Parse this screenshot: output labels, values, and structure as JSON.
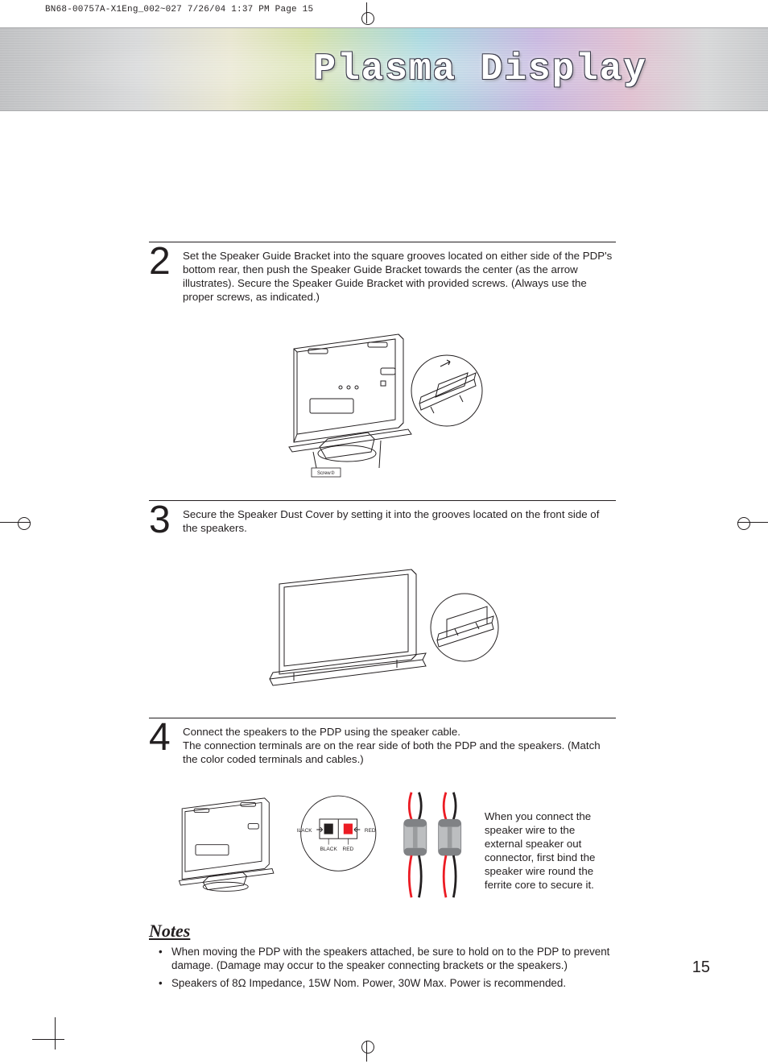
{
  "print_header": "BN68-00757A-X1Eng_002~027  7/26/04  1:37 PM  Page 15",
  "banner_title": "Plasma Display",
  "steps": {
    "s2": {
      "num": "2",
      "text": "Set the Speaker Guide Bracket into the square grooves located on either side of the PDP's bottom rear, then push the Speaker Guide Bracket towards the center (as the arrow illustrates). Secure the Speaker Guide Bracket with provided screws. (Always use the proper screws, as indicated.)",
      "callout": "Screw②"
    },
    "s3": {
      "num": "3",
      "text": "Secure the Speaker Dust Cover by setting it into the grooves located on the front side of the speakers."
    },
    "s4": {
      "num": "4",
      "text": "Connect the speakers to the PDP using the speaker cable.\nThe connection terminals are on the rear side of both the PDP and the speakers. (Match the color coded terminals and cables.)",
      "side": "When you connect the speaker wire to the external speaker out connector, first bind the speaker wire round the ferrite core to secure it.",
      "terminal_labels": {
        "bl": "BLACK",
        "rd": "RED"
      },
      "colors": {
        "red_wire": "#ec1c24",
        "black_wire": "#231f20",
        "ferrite_body": "#bcbec0",
        "ferrite_cap": "#808285"
      }
    }
  },
  "notes": {
    "heading": "Notes",
    "items": [
      "When moving the PDP with the speakers attached, be sure to hold on to the PDP to prevent damage. (Damage may occur to the speaker connecting brackets or the speakers.)",
      "Speakers of 8Ω Impedance, 15W Nom. Power, 30W Max. Power is recommended."
    ]
  },
  "page_number": "15",
  "style": {
    "text_color": "#231f20",
    "rule_color": "#231f20",
    "body_font_pt": 10,
    "stepnum_font_pt": 36,
    "banner_font_pt": 34
  }
}
